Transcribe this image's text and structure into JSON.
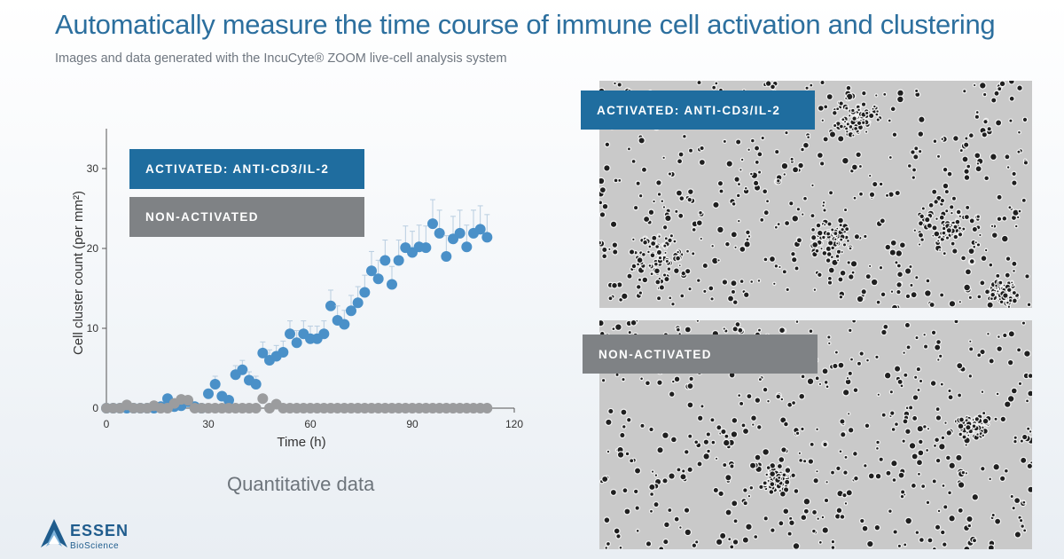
{
  "header": {
    "title": "Automatically measure the time course of immune cell activation and clustering",
    "subtitle": "Images and data generated with the IncuCyte® ZOOM live-cell analysis system"
  },
  "caption": "Quantitative data",
  "badges": {
    "activated": "ACTIVATED: ANTI-CD3/IL-2",
    "non_activated": "NON-ACTIVATED"
  },
  "logo": {
    "name": "ESSEN",
    "sub": "BioScience"
  },
  "colors": {
    "activated": "#4a90c8",
    "non_activated": "#9b9c9e",
    "title": "#2c6f9e",
    "badge_blue": "#1f6d9f",
    "badge_gray": "#7f8285"
  },
  "chart_data": {
    "type": "scatter",
    "xlabel": "Time (h)",
    "ylabel": "Cell cluster count (per mm²)",
    "xlim": [
      0,
      120
    ],
    "ylim": [
      0,
      35
    ],
    "xticks": [
      0,
      30,
      60,
      90,
      120
    ],
    "yticks": [
      0,
      10,
      20,
      30
    ],
    "grid": false,
    "legend": "top-left",
    "series": [
      {
        "name": "ACTIVATED: ANTI-CD3/IL-2",
        "x": [
          0,
          2,
          4,
          6,
          8,
          10,
          12,
          14,
          16,
          18,
          20,
          22,
          24,
          26,
          28,
          30,
          32,
          34,
          36,
          38,
          40,
          42,
          44,
          46,
          48,
          50,
          52,
          54,
          56,
          58,
          60,
          62,
          64,
          66,
          68,
          70,
          72,
          74,
          76,
          78,
          80,
          82,
          84,
          86,
          88,
          90,
          92,
          94,
          96,
          98,
          100,
          102,
          104,
          106,
          108,
          110,
          112
        ],
        "y": [
          0,
          0,
          0,
          0,
          0,
          0,
          0,
          0,
          0.2,
          1.2,
          0.2,
          0.3,
          0.8,
          0.2,
          0,
          1.8,
          3,
          1.5,
          1,
          4.2,
          4.8,
          3.5,
          3,
          6.9,
          6,
          6.5,
          7,
          9.3,
          8.2,
          9.3,
          8.7,
          8.7,
          9.3,
          12.8,
          11,
          10.5,
          12.2,
          13.2,
          14.5,
          17.2,
          16.2,
          18.5,
          15.5,
          18.5,
          20.1,
          19.5,
          20.2,
          20.1,
          23.1,
          21.9,
          19,
          21.2,
          21.9,
          20.2,
          21.9,
          22.4,
          21.4
        ]
      },
      {
        "name": "NON-ACTIVATED",
        "x": [
          0,
          2,
          4,
          6,
          8,
          10,
          12,
          14,
          16,
          18,
          20,
          22,
          24,
          26,
          28,
          30,
          32,
          34,
          36,
          38,
          40,
          42,
          44,
          46,
          48,
          50,
          52,
          54,
          56,
          58,
          60,
          62,
          64,
          66,
          68,
          70,
          72,
          74,
          76,
          78,
          80,
          82,
          84,
          86,
          88,
          90,
          92,
          94,
          96,
          98,
          100,
          102,
          104,
          106,
          108,
          110,
          112
        ],
        "y": [
          0,
          0,
          0,
          0.4,
          0,
          0,
          0,
          0.3,
          0,
          0,
          0.6,
          1.1,
          1,
          0,
          0,
          0,
          0,
          0,
          0,
          0,
          0,
          0,
          0,
          1.2,
          0,
          0.5,
          0,
          0,
          0,
          0,
          0,
          0,
          0,
          0,
          0,
          0,
          0,
          0,
          0,
          0,
          0,
          0,
          0,
          0,
          0,
          0,
          0,
          0,
          0,
          0,
          0,
          0,
          0,
          0,
          0,
          0,
          0
        ]
      }
    ]
  }
}
